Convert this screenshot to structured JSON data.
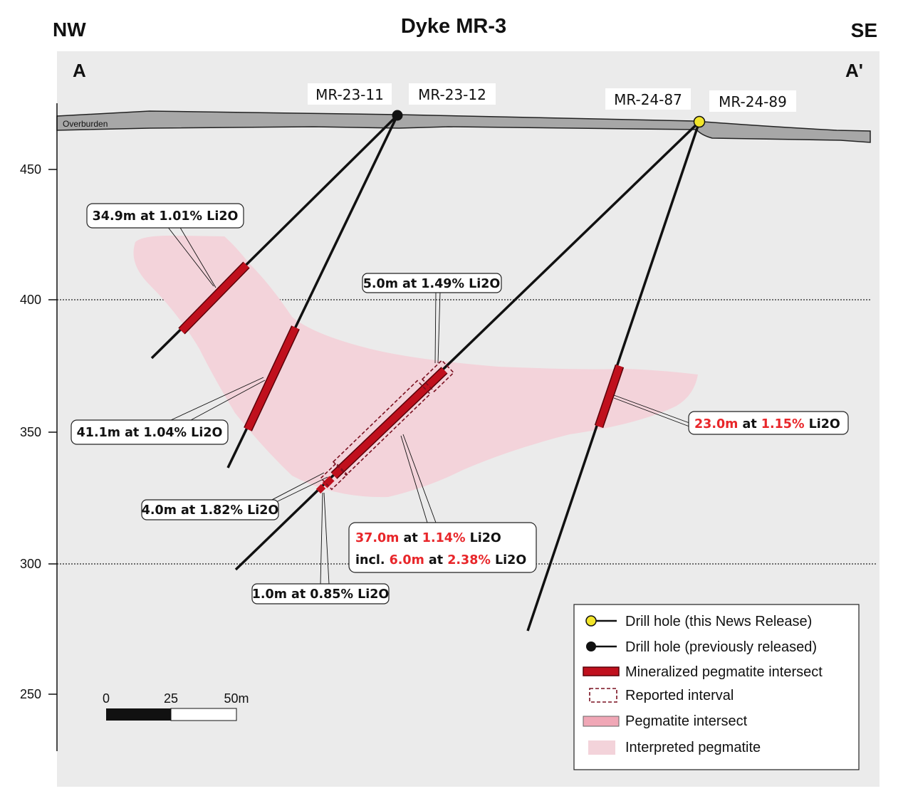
{
  "title": "Dyke MR-3",
  "orientation": {
    "left": "NW",
    "right": "SE"
  },
  "section": {
    "start": "A",
    "end": "A'"
  },
  "overburden_label": "Overburden",
  "holes": [
    {
      "name": "MR-23-11",
      "status": "previously released"
    },
    {
      "name": "MR-23-12",
      "status": "previously released"
    },
    {
      "name": "MR-24-87",
      "status": "this news release"
    },
    {
      "name": "MR-24-89",
      "status": "this news release"
    }
  ],
  "elevation_axis": {
    "ticks": [
      "450",
      "400",
      "350",
      "300",
      "250"
    ]
  },
  "intercepts": {
    "a": {
      "text": "34.9m at 1.01% Li2O"
    },
    "b": {
      "text": "41.1m at 1.04% Li2O"
    },
    "c": {
      "text": "5.0m at 1.49% Li2O"
    },
    "d": {
      "text": "4.0m at 1.82% Li2O"
    },
    "e": {
      "text": "1.0m at 0.85% Li2O"
    },
    "f": {
      "len": "37.0m",
      "at": " at ",
      "grade": "1.14%",
      "unit": " Li2O",
      "incl": "incl. ",
      "len2": "6.0m",
      "grade2": "2.38%"
    },
    "g": {
      "len": "23.0m",
      "at": " at ",
      "grade": "1.15%",
      "unit": " Li2O"
    }
  },
  "scale_bar": {
    "labels": [
      "0",
      "25",
      "50m"
    ]
  },
  "legend": {
    "items": [
      {
        "label": "Drill hole (this News Release)",
        "icon": "yellow-collar-icon"
      },
      {
        "label": "Drill hole (previously released)",
        "icon": "black-collar-icon"
      },
      {
        "label": "Mineralized pegmatite intersect",
        "icon": "red-bar-icon"
      },
      {
        "label": "Reported interval",
        "icon": "dashed-box-icon"
      },
      {
        "label": "Pegmatite intersect",
        "icon": "pink-bar-icon"
      },
      {
        "label": "Interpreted pegmatite",
        "icon": "pink-area-icon"
      }
    ]
  },
  "colors": {
    "background_panel": "#ebebeb",
    "overburden": "#a7a7a7",
    "interpreted_pegmatite": "#f3d3da",
    "mineralized": "#c0101d",
    "highlight_text": "#e8262a",
    "new_collar": "#f2e52a"
  }
}
